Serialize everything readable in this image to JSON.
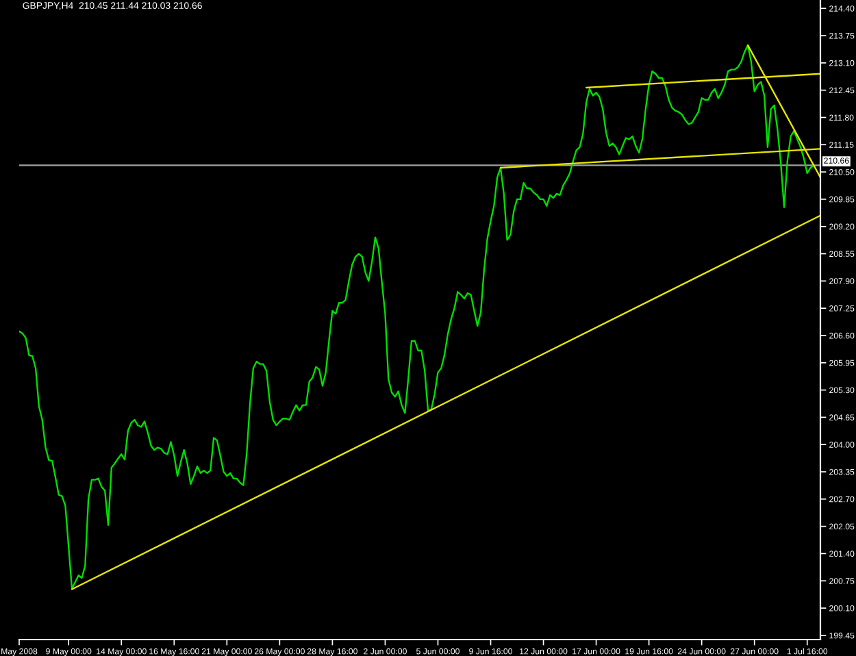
{
  "chart_data": {
    "type": "line",
    "title": "GBPJPY,H4  210.45 211.44 210.03 210.66",
    "categories": [
      "May 2008",
      null,
      null,
      null,
      null,
      null,
      null,
      null,
      null,
      null,
      null,
      null,
      null,
      null,
      null,
      "9 May 00:00",
      null,
      null,
      null,
      null,
      null,
      null,
      null,
      null,
      null,
      null,
      null,
      null,
      null,
      null,
      null,
      "14 May 00:00",
      null,
      null,
      null,
      null,
      null,
      null,
      null,
      null,
      null,
      null,
      null,
      null,
      null,
      null,
      null,
      "16 May 16:00",
      null,
      null,
      null,
      null,
      null,
      null,
      null,
      null,
      null,
      null,
      null,
      null,
      null,
      null,
      null,
      "21 May 00:00",
      null,
      null,
      null,
      null,
      null,
      null,
      null,
      null,
      null,
      null,
      null,
      null,
      null,
      null,
      null,
      "26 May 00:00",
      null,
      null,
      null,
      null,
      null,
      null,
      null,
      null,
      null,
      null,
      null,
      null,
      null,
      null,
      null,
      "28 May 16:00",
      null,
      null,
      null,
      null,
      null,
      null,
      null,
      null,
      null,
      null,
      null,
      null,
      null,
      null,
      null,
      "2 Jun 00:00",
      null,
      null,
      null,
      null,
      null,
      null,
      null,
      null,
      null,
      null,
      null,
      null,
      null,
      null,
      null,
      "5 Jun 00:00",
      null,
      null,
      null,
      null,
      null,
      null,
      null,
      null,
      null,
      null,
      null,
      null,
      null,
      null,
      null,
      "9 Jun 16:00",
      null,
      null,
      null,
      null,
      null,
      null,
      null,
      null,
      null,
      null,
      null,
      null,
      null,
      null,
      null,
      "12 Jun 00:00",
      null,
      null,
      null,
      null,
      null,
      null,
      null,
      null,
      null,
      null,
      null,
      null,
      null,
      null,
      null,
      "17 Jun 00:00",
      null,
      null,
      null,
      null,
      null,
      null,
      null,
      null,
      null,
      null,
      null,
      null,
      null,
      null,
      null,
      "19 Jun 16:00",
      null,
      null,
      null,
      null,
      null,
      null,
      null,
      null,
      null,
      null,
      null,
      null,
      null,
      null,
      null,
      "24 Jun 00:00",
      null,
      null,
      null,
      null,
      null,
      null,
      null,
      null,
      null,
      null,
      null,
      null,
      null,
      null,
      null,
      "27 Jun 00:00",
      null,
      null,
      null,
      null,
      null,
      null,
      null,
      null,
      null,
      null,
      null,
      null,
      null,
      null,
      null,
      "1 Jul 16:00",
      null,
      null,
      null,
      null
    ],
    "ylim": [
      199.35,
      214.6
    ],
    "yticks": [
      199.45,
      {
        "value": 200.1,
        "label": "200.10"
      },
      200.75,
      {
        "value": 201.4,
        "label": "201.40"
      },
      202.05,
      {
        "value": 202.7,
        "label": "202.70"
      },
      203.35,
      {
        "value": 204.0,
        "label": "204.00"
      },
      204.65,
      {
        "value": 205.3,
        "label": "205.30"
      },
      205.95,
      {
        "value": 206.6,
        "label": "206.60"
      },
      207.25,
      {
        "value": 207.9,
        "label": "207.90"
      },
      208.55,
      {
        "value": 209.2,
        "label": "209.20"
      },
      209.85,
      {
        "value": 210.5,
        "label": "210.50"
      },
      211.15,
      {
        "value": 211.8,
        "label": "211.80"
      },
      212.45,
      {
        "value": 213.1,
        "label": "213.10"
      },
      213.75,
      {
        "value": 214.4,
        "label": "214.40"
      }
    ],
    "series": [
      {
        "color": "#00e000",
        "values": [
          206.7,
          206.65,
          206.54,
          206.13,
          206.11,
          205.82,
          204.91,
          204.59,
          203.93,
          203.63,
          203.61,
          203.22,
          202.8,
          202.77,
          202.54,
          201.56,
          200.56,
          200.72,
          200.88,
          200.82,
          201.11,
          202.7,
          203.16,
          203.16,
          203.19,
          202.99,
          202.9,
          202.08,
          203.45,
          203.55,
          203.67,
          203.77,
          203.64,
          204.33,
          204.52,
          204.59,
          204.46,
          204.42,
          204.55,
          204.29,
          203.97,
          203.87,
          203.93,
          203.9,
          203.8,
          203.77,
          204.06,
          203.74,
          203.25,
          203.58,
          203.87,
          203.55,
          203.06,
          203.25,
          203.48,
          203.32,
          203.38,
          203.32,
          203.38,
          204.16,
          204.1,
          203.74,
          203.35,
          203.25,
          203.32,
          203.19,
          203.19,
          203.09,
          203.03,
          203.77,
          204.97,
          205.82,
          205.98,
          205.92,
          205.92,
          205.76,
          205.01,
          204.59,
          204.46,
          204.55,
          204.62,
          204.62,
          204.59,
          204.78,
          204.94,
          204.81,
          204.94,
          204.94,
          205.5,
          205.6,
          205.85,
          205.79,
          205.4,
          205.72,
          206.5,
          207.19,
          207.12,
          207.38,
          207.38,
          207.45,
          207.9,
          208.29,
          208.48,
          208.55,
          208.48,
          208.1,
          207.9,
          208.36,
          208.94,
          208.68,
          207.87,
          207.12,
          205.56,
          205.24,
          205.14,
          205.27,
          204.94,
          204.75,
          205.56,
          206.47,
          206.47,
          206.24,
          206.24,
          205.76,
          204.81,
          204.84,
          205.2,
          205.72,
          205.82,
          206.14,
          206.63,
          206.99,
          207.25,
          207.64,
          207.57,
          207.48,
          207.61,
          207.57,
          207.19,
          206.83,
          207.15,
          208.16,
          208.91,
          209.33,
          209.69,
          210.37,
          210.6,
          209.98,
          208.88,
          209.0,
          209.56,
          209.85,
          209.85,
          210.24,
          210.11,
          210.11,
          210.01,
          209.95,
          209.85,
          209.85,
          209.69,
          209.95,
          209.88,
          209.98,
          209.95,
          210.18,
          210.31,
          210.47,
          210.76,
          211.02,
          211.09,
          211.41,
          212.16,
          212.48,
          212.32,
          212.39,
          212.29,
          212.0,
          211.44,
          211.12,
          211.18,
          211.09,
          210.92,
          211.12,
          211.31,
          211.28,
          211.35,
          211.12,
          210.96,
          211.28,
          212.0,
          212.58,
          212.9,
          212.84,
          212.74,
          212.74,
          212.55,
          212.22,
          212.03,
          211.96,
          211.93,
          211.87,
          211.74,
          211.64,
          211.67,
          211.8,
          211.93,
          212.26,
          212.22,
          212.22,
          212.39,
          212.48,
          212.26,
          212.39,
          212.58,
          212.9,
          212.94,
          212.94,
          213.0,
          213.13,
          213.36,
          213.52,
          213.13,
          212.42,
          212.58,
          212.65,
          212.32,
          211.09,
          212.0,
          212.09,
          211.51,
          210.7,
          209.66,
          210.76,
          211.35,
          211.48,
          211.28,
          211.09,
          210.82,
          210.47,
          210.6,
          210.66,
          null,
          null
        ]
      },
      {
        "color": "#e6e600",
        "values": [
          null,
          null,
          null,
          null,
          null,
          null,
          null,
          null,
          null,
          null,
          null,
          null,
          null,
          null,
          null,
          null,
          200.55,
          null,
          null,
          null,
          null,
          null,
          null,
          null,
          null,
          null,
          null,
          null,
          null,
          null,
          null,
          null,
          null,
          null,
          null,
          null,
          null,
          null,
          null,
          null,
          null,
          null,
          null,
          null,
          null,
          null,
          null,
          null,
          null,
          null,
          null,
          null,
          null,
          null,
          null,
          null,
          null,
          null,
          null,
          null,
          null,
          null,
          null,
          null,
          null,
          null,
          null,
          null,
          null,
          null,
          null,
          null,
          null,
          null,
          null,
          null,
          null,
          null,
          null,
          null,
          null,
          null,
          null,
          null,
          null,
          null,
          null,
          null,
          null,
          null,
          null,
          null,
          null,
          null,
          null,
          null,
          null,
          null,
          null,
          null,
          null,
          null,
          null,
          null,
          null,
          null,
          null,
          null,
          null,
          null,
          null,
          null,
          null,
          null,
          null,
          null,
          null,
          null,
          null,
          null,
          null,
          null,
          null,
          null,
          null,
          null,
          null,
          null,
          null,
          null,
          null,
          null,
          null,
          null,
          null,
          null,
          null,
          null,
          null,
          null,
          null,
          null,
          null,
          null,
          null,
          null,
          null,
          null,
          null,
          null,
          null,
          null,
          null,
          null,
          null,
          null,
          null,
          null,
          null,
          null,
          null,
          null,
          null,
          null,
          null,
          null,
          null,
          null,
          null,
          null,
          null,
          null,
          null,
          null,
          null,
          null,
          null,
          null,
          null,
          null,
          null,
          null,
          null,
          null,
          null,
          null,
          null,
          null,
          null,
          null,
          null,
          null,
          null,
          null,
          null,
          null,
          null,
          null,
          null,
          null,
          null,
          null,
          null,
          null,
          null,
          null,
          null,
          null,
          null,
          null,
          null,
          null,
          null,
          null,
          null,
          null,
          null,
          null,
          null,
          null,
          null,
          null,
          null,
          null,
          null,
          null,
          null,
          null,
          null,
          null,
          null,
          null,
          null,
          null,
          null,
          null,
          null,
          null,
          null,
          null,
          null,
          null,
          null,
          209.46
        ]
      },
      {
        "color": "#e6e600",
        "values": [
          null,
          null,
          null,
          null,
          null,
          null,
          null,
          null,
          null,
          null,
          null,
          null,
          null,
          null,
          null,
          null,
          null,
          null,
          null,
          null,
          null,
          null,
          null,
          null,
          null,
          null,
          null,
          null,
          null,
          null,
          null,
          null,
          null,
          null,
          null,
          null,
          null,
          null,
          null,
          null,
          null,
          null,
          null,
          null,
          null,
          null,
          null,
          null,
          null,
          null,
          null,
          null,
          null,
          null,
          null,
          null,
          null,
          null,
          null,
          null,
          null,
          null,
          null,
          null,
          null,
          null,
          null,
          null,
          null,
          null,
          null,
          null,
          null,
          null,
          null,
          null,
          null,
          null,
          null,
          null,
          null,
          null,
          null,
          null,
          null,
          null,
          null,
          null,
          null,
          null,
          null,
          null,
          null,
          null,
          null,
          null,
          null,
          null,
          null,
          null,
          null,
          null,
          null,
          null,
          null,
          null,
          null,
          null,
          null,
          null,
          null,
          null,
          null,
          null,
          null,
          null,
          null,
          null,
          null,
          null,
          null,
          null,
          null,
          null,
          null,
          null,
          null,
          null,
          null,
          null,
          null,
          null,
          null,
          null,
          null,
          null,
          null,
          null,
          null,
          null,
          null,
          null,
          null,
          null,
          null,
          null,
          null,
          null,
          null,
          null,
          null,
          null,
          null,
          null,
          null,
          null,
          null,
          null,
          null,
          null,
          null,
          null,
          null,
          null,
          null,
          null,
          null,
          null,
          null,
          null,
          null,
          null,
          212.51,
          null,
          null,
          null,
          null,
          null,
          null,
          null,
          null,
          null,
          null,
          null,
          null,
          null,
          null,
          null,
          null,
          null,
          null,
          null,
          null,
          null,
          null,
          null,
          null,
          null,
          null,
          null,
          null,
          null,
          null,
          null,
          null,
          null,
          null,
          null,
          null,
          null,
          null,
          null,
          null,
          null,
          null,
          null,
          null,
          null,
          null,
          null,
          null,
          null,
          null,
          null,
          null,
          null,
          null,
          null,
          null,
          null,
          null,
          null,
          null,
          null,
          null,
          null,
          null,
          null,
          null,
          null,
          null,
          null,
          null,
          212.84
        ]
      },
      {
        "color": "#e6e600",
        "values": [
          null,
          null,
          null,
          null,
          null,
          null,
          null,
          null,
          null,
          null,
          null,
          null,
          null,
          null,
          null,
          null,
          null,
          null,
          null,
          null,
          null,
          null,
          null,
          null,
          null,
          null,
          null,
          null,
          null,
          null,
          null,
          null,
          null,
          null,
          null,
          null,
          null,
          null,
          null,
          null,
          null,
          null,
          null,
          null,
          null,
          null,
          null,
          null,
          null,
          null,
          null,
          null,
          null,
          null,
          null,
          null,
          null,
          null,
          null,
          null,
          null,
          null,
          null,
          null,
          null,
          null,
          null,
          null,
          null,
          null,
          null,
          null,
          null,
          null,
          null,
          null,
          null,
          null,
          null,
          null,
          null,
          null,
          null,
          null,
          null,
          null,
          null,
          null,
          null,
          null,
          null,
          null,
          null,
          null,
          null,
          null,
          null,
          null,
          null,
          null,
          null,
          null,
          null,
          null,
          null,
          null,
          null,
          null,
          null,
          null,
          null,
          null,
          null,
          null,
          null,
          null,
          null,
          null,
          null,
          null,
          null,
          null,
          null,
          null,
          null,
          null,
          null,
          null,
          null,
          null,
          null,
          null,
          null,
          null,
          null,
          null,
          null,
          null,
          null,
          null,
          null,
          null,
          null,
          null,
          null,
          null,
          210.6,
          null,
          null,
          null,
          null,
          null,
          null,
          null,
          null,
          null,
          null,
          null,
          null,
          null,
          null,
          null,
          null,
          null,
          null,
          null,
          null,
          null,
          null,
          null,
          null,
          null,
          null,
          null,
          null,
          null,
          null,
          null,
          null,
          null,
          null,
          null,
          null,
          null,
          null,
          null,
          null,
          null,
          null,
          null,
          null,
          null,
          null,
          null,
          null,
          null,
          null,
          null,
          null,
          null,
          null,
          null,
          null,
          null,
          null,
          null,
          null,
          null,
          null,
          null,
          null,
          null,
          null,
          null,
          null,
          null,
          null,
          null,
          null,
          null,
          null,
          null,
          null,
          null,
          null,
          null,
          null,
          null,
          null,
          null,
          null,
          null,
          null,
          null,
          null,
          null,
          null,
          null,
          null,
          null,
          null,
          null,
          null,
          211.05
        ]
      },
      {
        "color": "#e6e600",
        "values": [
          null,
          null,
          null,
          null,
          null,
          null,
          null,
          null,
          null,
          null,
          null,
          null,
          null,
          null,
          null,
          null,
          null,
          null,
          null,
          null,
          null,
          null,
          null,
          null,
          null,
          null,
          null,
          null,
          null,
          null,
          null,
          null,
          null,
          null,
          null,
          null,
          null,
          null,
          null,
          null,
          null,
          null,
          null,
          null,
          null,
          null,
          null,
          null,
          null,
          null,
          null,
          null,
          null,
          null,
          null,
          null,
          null,
          null,
          null,
          null,
          null,
          null,
          null,
          null,
          null,
          null,
          null,
          null,
          null,
          null,
          null,
          null,
          null,
          null,
          null,
          null,
          null,
          null,
          null,
          null,
          null,
          null,
          null,
          null,
          null,
          null,
          null,
          null,
          null,
          null,
          null,
          null,
          null,
          null,
          null,
          null,
          null,
          null,
          null,
          null,
          null,
          null,
          null,
          null,
          null,
          null,
          null,
          null,
          null,
          null,
          null,
          null,
          null,
          null,
          null,
          null,
          null,
          null,
          null,
          null,
          null,
          null,
          null,
          null,
          null,
          null,
          null,
          null,
          null,
          null,
          null,
          null,
          null,
          null,
          null,
          null,
          null,
          null,
          null,
          null,
          null,
          null,
          null,
          null,
          null,
          null,
          null,
          null,
          null,
          null,
          null,
          null,
          null,
          null,
          null,
          null,
          null,
          null,
          null,
          null,
          null,
          null,
          null,
          null,
          null,
          null,
          null,
          null,
          null,
          null,
          null,
          null,
          null,
          null,
          null,
          null,
          null,
          null,
          null,
          null,
          null,
          null,
          null,
          null,
          null,
          null,
          null,
          null,
          null,
          null,
          null,
          null,
          null,
          null,
          null,
          null,
          null,
          null,
          null,
          null,
          null,
          null,
          null,
          null,
          null,
          null,
          null,
          null,
          null,
          null,
          null,
          null,
          null,
          null,
          null,
          null,
          null,
          null,
          null,
          null,
          null,
          213.52,
          null,
          null,
          null,
          null,
          null,
          null,
          null,
          null,
          null,
          null,
          null,
          null,
          null,
          null,
          null,
          null,
          null,
          null,
          null,
          null,
          null,
          210.37
        ]
      }
    ],
    "ref_lines": [
      {
        "axis": "y",
        "value": 210.66,
        "label": "210.66",
        "color": "#a0a0a0"
      }
    ]
  }
}
